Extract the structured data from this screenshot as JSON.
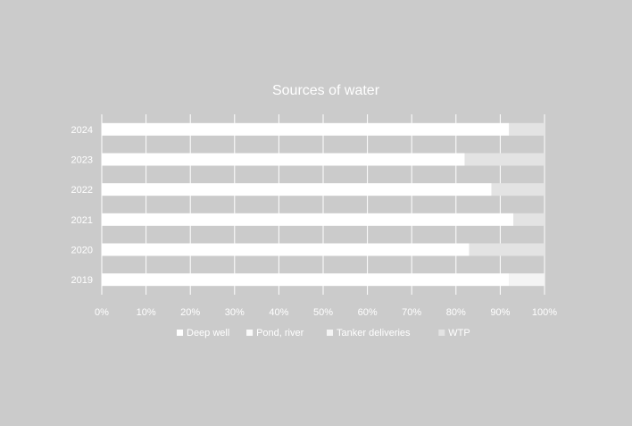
{
  "chart_data": {
    "type": "bar",
    "orientation": "horizontal",
    "stacked": true,
    "percent": true,
    "title": "Sources of water",
    "xlabel": "",
    "ylabel": "",
    "categories": [
      "2024",
      "2023",
      "2022",
      "2021",
      "2020",
      "2019"
    ],
    "series": [
      {
        "name": "Deep well",
        "color": "#ffffff",
        "values": [
          92,
          82,
          88,
          93,
          83,
          92
        ]
      },
      {
        "name": "Pond, river",
        "color": "#fafafa",
        "values": [
          0,
          0,
          0,
          0,
          0,
          0
        ]
      },
      {
        "name": "Tanker deliveries",
        "color": "#f4f4f4",
        "values": [
          0,
          0,
          0,
          0,
          0,
          8
        ]
      },
      {
        "name": "WTP",
        "color": "#e3e3e3",
        "values": [
          8,
          18,
          12,
          7,
          17,
          0
        ]
      }
    ],
    "xlim": [
      0,
      100
    ],
    "xticks": [
      "0%",
      "10%",
      "20%",
      "30%",
      "40%",
      "50%",
      "60%",
      "70%",
      "80%",
      "90%",
      "100%"
    ],
    "grid": true,
    "legend_position": "bottom"
  },
  "colors": {
    "background": "#cbcbcb",
    "text": "#ffffff",
    "gridline": "#ffffff"
  }
}
